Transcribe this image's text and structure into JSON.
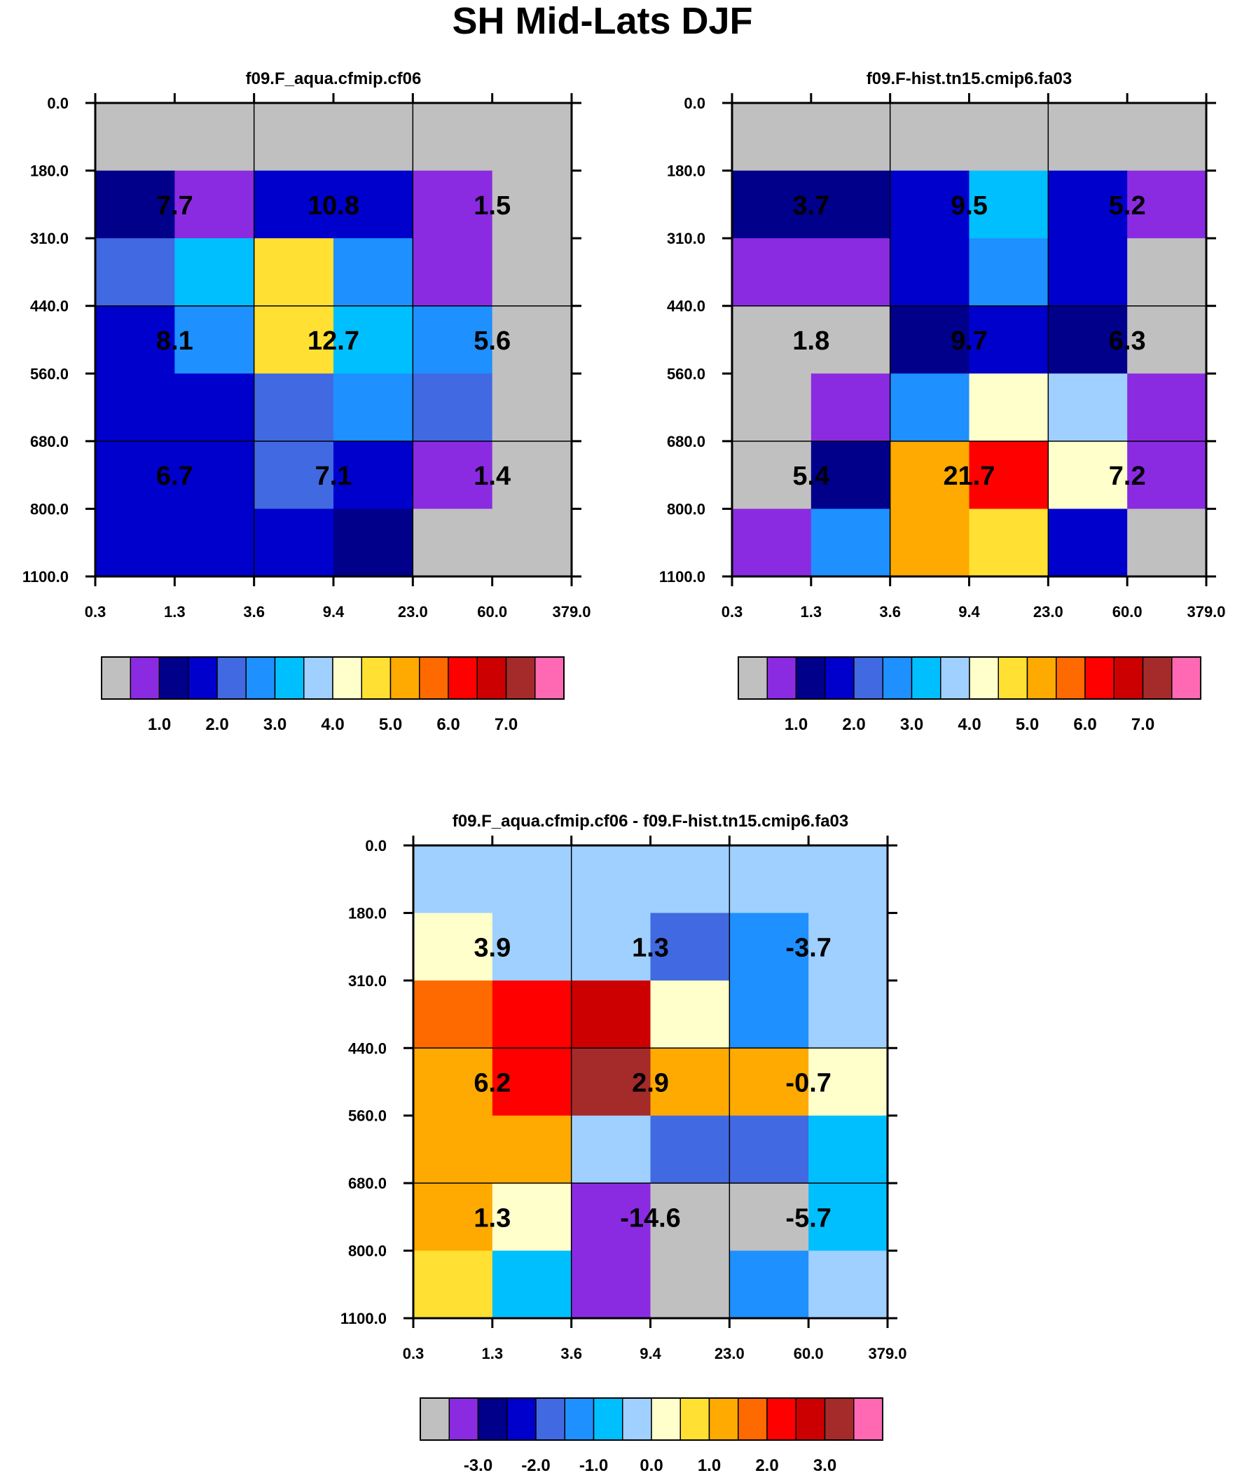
{
  "title": "SH Mid-Lats DJF",
  "colors": {
    "palette": [
      "#c0c0c0",
      "#8a2be2",
      "#00008b",
      "#0000cd",
      "#4169e1",
      "#1e90ff",
      "#00bfff",
      "#a0d0ff",
      "#ffffcc",
      "#ffe033",
      "#ffaa00",
      "#ff6a00",
      "#ff0000",
      "#cc0000",
      "#a52a2a",
      "#ff69b4"
    ],
    "grid": "#000000",
    "background": "#ffffff"
  },
  "chart_data": [
    {
      "type": "heatmap",
      "title": "f09.F_aqua.cfmip.cf06",
      "xticks": [
        "0.3",
        "1.3",
        "3.6",
        "9.4",
        "23.0",
        "60.0",
        "379.0"
      ],
      "yticks": [
        "0.0",
        "180.0",
        "310.0",
        "440.0",
        "560.0",
        "680.0",
        "800.0",
        "1100.0"
      ],
      "cells": [
        [
          0,
          0,
          0,
          0,
          0,
          0
        ],
        [
          2,
          1,
          3,
          3,
          1,
          0
        ],
        [
          4,
          6,
          9,
          5,
          1,
          0
        ],
        [
          3,
          5,
          9,
          6,
          5,
          0
        ],
        [
          3,
          3,
          4,
          5,
          4,
          0
        ],
        [
          3,
          3,
          4,
          3,
          1,
          0
        ],
        [
          3,
          3,
          3,
          2,
          0,
          0
        ]
      ],
      "box_values": [
        [
          "7.7",
          "10.8",
          "1.5"
        ],
        [
          "8.1",
          "12.7",
          "5.6"
        ],
        [
          "6.7",
          "7.1",
          "1.4"
        ]
      ],
      "colorbar_labels": [
        "1.0",
        "2.0",
        "3.0",
        "4.0",
        "5.0",
        "6.0",
        "7.0"
      ]
    },
    {
      "type": "heatmap",
      "title": "f09.F-hist.tn15.cmip6.fa03",
      "xticks": [
        "0.3",
        "1.3",
        "3.6",
        "9.4",
        "23.0",
        "60.0",
        "379.0"
      ],
      "yticks": [
        "0.0",
        "180.0",
        "310.0",
        "440.0",
        "560.0",
        "680.0",
        "800.0",
        "1100.0"
      ],
      "cells": [
        [
          0,
          0,
          0,
          0,
          0,
          0
        ],
        [
          2,
          2,
          3,
          6,
          3,
          1
        ],
        [
          1,
          1,
          3,
          5,
          3,
          0
        ],
        [
          0,
          0,
          2,
          3,
          2,
          0
        ],
        [
          0,
          1,
          5,
          8,
          7,
          1
        ],
        [
          0,
          2,
          10,
          12,
          8,
          1
        ],
        [
          1,
          5,
          10,
          9,
          3,
          0
        ]
      ],
      "box_values": [
        [
          "3.7",
          "9.5",
          "5.2"
        ],
        [
          "1.8",
          "9.7",
          "6.3"
        ],
        [
          "5.4",
          "21.7",
          "7.2"
        ]
      ],
      "colorbar_labels": [
        "1.0",
        "2.0",
        "3.0",
        "4.0",
        "5.0",
        "6.0",
        "7.0"
      ]
    },
    {
      "type": "heatmap",
      "title": "f09.F_aqua.cfmip.cf06 - f09.F-hist.tn15.cmip6.fa03",
      "xticks": [
        "0.3",
        "1.3",
        "3.6",
        "9.4",
        "23.0",
        "60.0",
        "379.0"
      ],
      "yticks": [
        "0.0",
        "180.0",
        "310.0",
        "440.0",
        "560.0",
        "680.0",
        "800.0",
        "1100.0"
      ],
      "cells": [
        [
          7,
          7,
          7,
          7,
          7,
          7
        ],
        [
          8,
          7,
          7,
          4,
          5,
          7
        ],
        [
          11,
          12,
          13,
          8,
          5,
          7
        ],
        [
          10,
          12,
          14,
          10,
          10,
          8
        ],
        [
          10,
          10,
          7,
          4,
          4,
          6
        ],
        [
          10,
          8,
          1,
          0,
          0,
          6
        ],
        [
          9,
          6,
          1,
          0,
          5,
          7
        ]
      ],
      "box_values": [
        [
          "3.9",
          "1.3",
          "-3.7"
        ],
        [
          "6.2",
          "2.9",
          "-0.7"
        ],
        [
          "1.3",
          "-14.6",
          "-5.7"
        ]
      ],
      "colorbar_labels": [
        "-3.0",
        "-2.0",
        "-1.0",
        "0.0",
        "1.0",
        "2.0",
        "3.0"
      ]
    }
  ]
}
